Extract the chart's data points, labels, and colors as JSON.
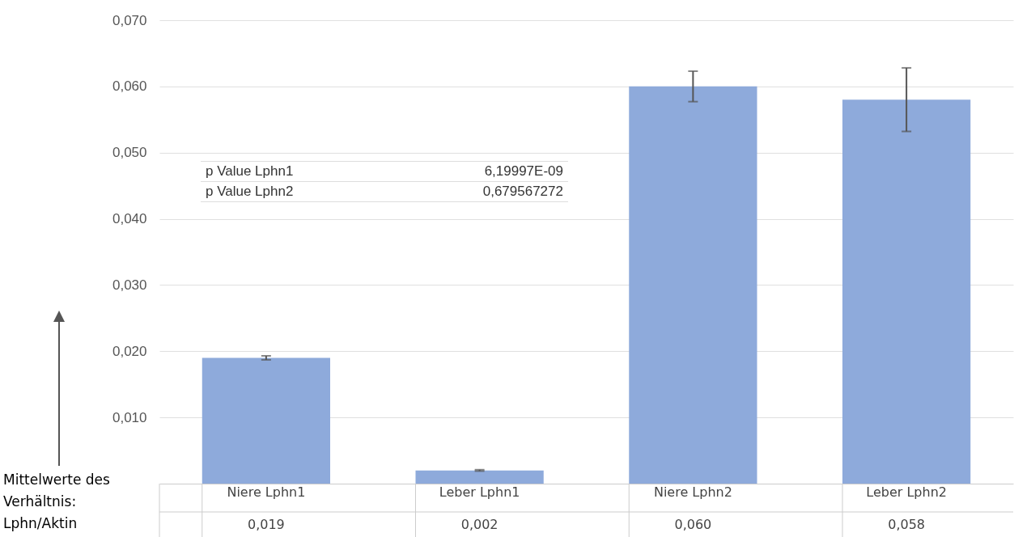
{
  "chart_data": {
    "type": "bar",
    "ylabel": "Mittelwerte des Verhältnis: Lphn/Aktin",
    "categories": [
      "Niere Lphn1",
      "Leber Lphn1",
      "Niere Lphn2",
      "Leber Lphn2"
    ],
    "values": [
      0.019,
      0.002,
      0.06,
      0.058
    ],
    "value_labels": [
      "0,019",
      "0,002",
      "0,060",
      "0,058"
    ],
    "errors": [
      0.0003,
      0.0001,
      0.0023,
      0.0048
    ],
    "color": "#8eaadb",
    "ylim": [
      0,
      0.07
    ],
    "yticks": [
      {
        "value": 0.01,
        "label": "0,010"
      },
      {
        "value": 0.02,
        "label": "0,020"
      },
      {
        "value": 0.03,
        "label": "0,030"
      },
      {
        "value": 0.04,
        "label": "0,040"
      },
      {
        "value": 0.05,
        "label": "0,050"
      },
      {
        "value": 0.06,
        "label": "0,060"
      },
      {
        "value": 0.07,
        "label": "0,070"
      }
    ],
    "grid": "y",
    "annotations": [
      "p Value Lphn1",
      "6,19997E-09",
      "p Value Lphn2",
      "0,679567272"
    ]
  }
}
